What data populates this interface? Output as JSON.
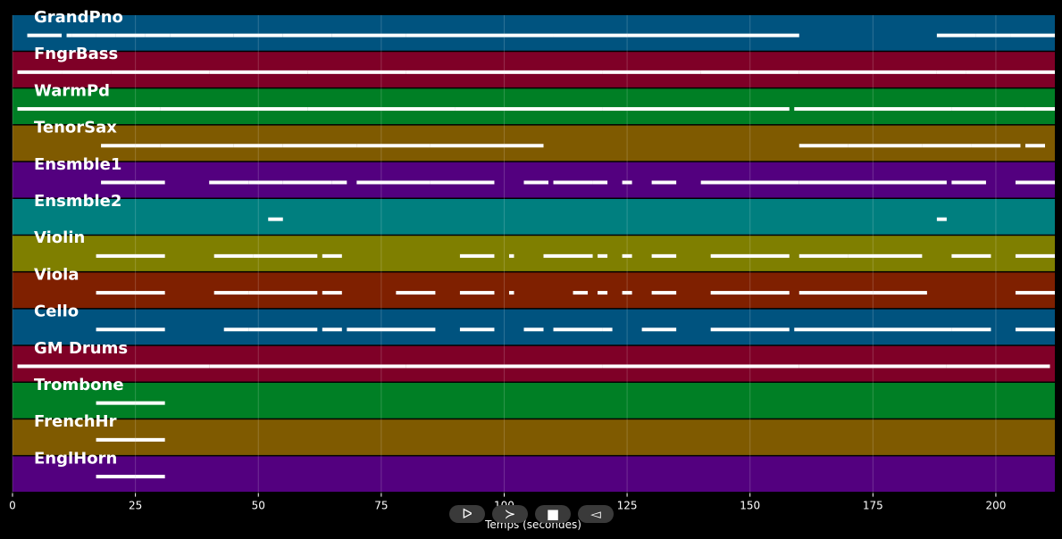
{
  "chart_data": {
    "type": "heatmap",
    "title": "",
    "xlabel": "Temps (secondes)",
    "xlim": [
      0,
      212
    ],
    "xticks": [
      0,
      25,
      50,
      75,
      100,
      125,
      150,
      175,
      200
    ],
    "grid": true,
    "tracks": [
      {
        "name": "GrandPno",
        "color": "#00537f",
        "segments": [
          [
            3,
            10
          ],
          [
            11,
            12
          ],
          [
            12,
            17
          ],
          [
            17,
            21
          ],
          [
            21,
            27
          ],
          [
            27,
            32
          ],
          [
            32,
            45
          ],
          [
            45,
            55
          ],
          [
            55,
            65
          ],
          [
            65,
            80
          ],
          [
            80,
            100
          ],
          [
            100,
            110
          ],
          [
            110,
            125
          ],
          [
            125,
            160
          ],
          [
            188,
            196
          ],
          [
            196,
            203
          ],
          [
            203,
            212
          ]
        ]
      },
      {
        "name": "FngrBass",
        "color": "#7f0027",
        "segments": [
          [
            1,
            10
          ],
          [
            10,
            20
          ],
          [
            20,
            40
          ],
          [
            40,
            60
          ],
          [
            60,
            80
          ],
          [
            80,
            100
          ],
          [
            100,
            120
          ],
          [
            120,
            140
          ],
          [
            140,
            160
          ],
          [
            160,
            188
          ],
          [
            188,
            194
          ],
          [
            194,
            212
          ]
        ]
      },
      {
        "name": "WarmPd",
        "color": "#007f25",
        "segments": [
          [
            1,
            30
          ],
          [
            30,
            60
          ],
          [
            60,
            90
          ],
          [
            90,
            120
          ],
          [
            120,
            158
          ],
          [
            159,
            191
          ],
          [
            191,
            206
          ],
          [
            206,
            212
          ]
        ]
      },
      {
        "name": "TenorSax",
        "color": "#7f5a00",
        "segments": [
          [
            18,
            25
          ],
          [
            25,
            30
          ],
          [
            30,
            45
          ],
          [
            45,
            55
          ],
          [
            55,
            70
          ],
          [
            70,
            85
          ],
          [
            85,
            100
          ],
          [
            100,
            108
          ],
          [
            160,
            170
          ],
          [
            170,
            185
          ],
          [
            185,
            195
          ],
          [
            195,
            205
          ],
          [
            206,
            210
          ]
        ]
      },
      {
        "name": "Ensmble1",
        "color": "#53007f",
        "segments": [
          [
            18,
            25
          ],
          [
            25,
            31
          ],
          [
            40,
            48
          ],
          [
            48,
            55
          ],
          [
            55,
            65
          ],
          [
            65,
            68
          ],
          [
            70,
            85
          ],
          [
            85,
            98
          ],
          [
            104,
            109
          ],
          [
            110,
            118
          ],
          [
            118,
            121
          ],
          [
            124,
            126
          ],
          [
            130,
            135
          ],
          [
            140,
            160
          ],
          [
            160,
            190
          ],
          [
            191,
            198
          ],
          [
            204,
            212
          ]
        ]
      },
      {
        "name": "Ensmble2",
        "color": "#007f7f",
        "segments": [
          [
            52,
            55
          ],
          [
            188,
            190
          ]
        ]
      },
      {
        "name": "Violin",
        "color": "#7f7f00",
        "segments": [
          [
            17,
            31
          ],
          [
            41,
            49
          ],
          [
            49,
            62
          ],
          [
            63,
            67
          ],
          [
            91,
            98
          ],
          [
            101,
            102
          ],
          [
            108,
            118
          ],
          [
            119,
            121
          ],
          [
            124,
            126
          ],
          [
            130,
            135
          ],
          [
            142,
            158
          ],
          [
            160,
            170
          ],
          [
            170,
            185
          ],
          [
            191,
            199
          ],
          [
            204,
            212
          ]
        ]
      },
      {
        "name": "Viola",
        "color": "#7f2000",
        "segments": [
          [
            17,
            31
          ],
          [
            41,
            48
          ],
          [
            48,
            62
          ],
          [
            63,
            67
          ],
          [
            78,
            86
          ],
          [
            91,
            98
          ],
          [
            101,
            102
          ],
          [
            114,
            117
          ],
          [
            119,
            121
          ],
          [
            124,
            126
          ],
          [
            130,
            135
          ],
          [
            142,
            158
          ],
          [
            160,
            175
          ],
          [
            175,
            186
          ],
          [
            204,
            212
          ]
        ]
      },
      {
        "name": "Cello",
        "color": "#00537f",
        "segments": [
          [
            17,
            31
          ],
          [
            43,
            48
          ],
          [
            48,
            62
          ],
          [
            63,
            67
          ],
          [
            68,
            86
          ],
          [
            91,
            98
          ],
          [
            104,
            108
          ],
          [
            110,
            120
          ],
          [
            120,
            122
          ],
          [
            128,
            135
          ],
          [
            142,
            158
          ],
          [
            159,
            191
          ],
          [
            191,
            199
          ],
          [
            204,
            212
          ]
        ]
      },
      {
        "name": "GM Drums",
        "color": "#7f0027",
        "segments": [
          [
            1,
            40
          ],
          [
            40,
            80
          ],
          [
            80,
            120
          ],
          [
            120,
            160
          ],
          [
            160,
            190
          ],
          [
            190,
            211
          ]
        ]
      },
      {
        "name": "Trombone",
        "color": "#007f25",
        "segments": [
          [
            17,
            25
          ],
          [
            25,
            31
          ]
        ]
      },
      {
        "name": "FrenchHr",
        "color": "#7f5a00",
        "segments": [
          [
            17,
            25
          ],
          [
            25,
            31
          ]
        ]
      },
      {
        "name": "EnglHorn",
        "color": "#53007f",
        "segments": [
          [
            17,
            25
          ],
          [
            25,
            31
          ]
        ]
      }
    ]
  },
  "controls": {
    "play_label": "ᐅ",
    "forward_label": "≻",
    "stop_label": "■",
    "back_label": "◅"
  }
}
